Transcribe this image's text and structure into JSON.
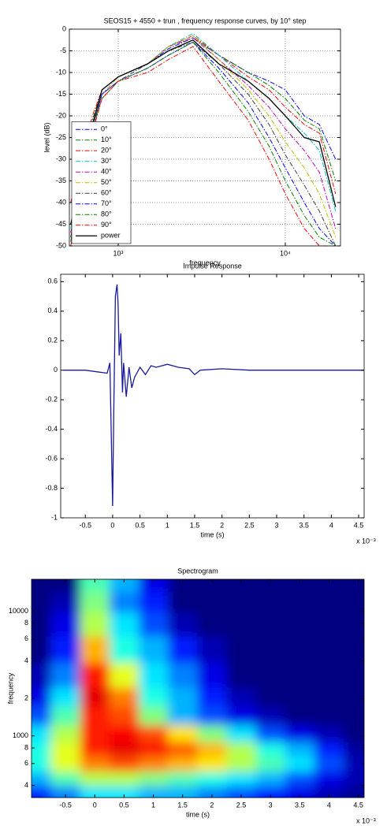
{
  "chart_data": [
    {
      "type": "line",
      "title": "SEOS15 + 4550 + trun , frequency response curves, by 10° step",
      "xlabel": "frequency",
      "ylabel": "level  (dB)",
      "xscale": "log",
      "grid": true,
      "legend": "lower left",
      "xlim": [
        510,
        21400
      ],
      "ylim": [
        -50,
        0
      ],
      "xticks": [
        {
          "value": 1000,
          "label": "10³"
        },
        {
          "value": 10000,
          "label": "10⁴"
        }
      ],
      "yticks": [
        -50,
        -45,
        -40,
        -35,
        -30,
        -25,
        -20,
        -15,
        -10,
        -5,
        0
      ],
      "x": [
        520,
        700,
        800,
        1000,
        1500,
        2000,
        2800,
        4000,
        6000,
        8000,
        10000,
        13000,
        16000,
        20000
      ],
      "series": [
        {
          "name": "0°",
          "color": "#0000ff",
          "line_style": "dash-dot",
          "values": [
            -48,
            -22,
            -15,
            -11,
            -8,
            -4.5,
            -2,
            -6,
            -10,
            -12,
            -14,
            -20,
            -22,
            -30
          ]
        },
        {
          "name": "10°",
          "color": "#008000",
          "line_style": "dash-dot",
          "values": [
            -47,
            -21,
            -14,
            -11,
            -8,
            -4,
            -2,
            -6,
            -10,
            -13,
            -16,
            -21,
            -23,
            -35
          ]
        },
        {
          "name": "20°",
          "color": "#ff0000",
          "line_style": "dash-dot",
          "values": [
            -40,
            -20,
            -14,
            -11,
            -8,
            -4,
            -1.5,
            -6,
            -11,
            -14,
            -18,
            -22,
            -24,
            -38
          ]
        },
        {
          "name": "30°",
          "color": "#00bfbf",
          "line_style": "dash-dot",
          "values": [
            -46,
            -22,
            -14,
            -11,
            -8,
            -4,
            -1,
            -6,
            -12,
            -16,
            -20,
            -24,
            -28,
            -42
          ]
        },
        {
          "name": "40°",
          "color": "#bf00bf",
          "line_style": "dash-dot",
          "values": [
            -47,
            -22,
            -14,
            -11,
            -8,
            -4,
            -2,
            -7,
            -13,
            -18,
            -23,
            -28,
            -33,
            -46
          ]
        },
        {
          "name": "50°",
          "color": "#bfbf00",
          "line_style": "dash-dot",
          "values": [
            -48,
            -22,
            -15,
            -11,
            -8,
            -4,
            -1.5,
            -7,
            -14,
            -20,
            -26,
            -32,
            -38,
            -48
          ]
        },
        {
          "name": "60°",
          "color": "#404040",
          "line_style": "dash-dot",
          "values": [
            -48,
            -23,
            -15,
            -12,
            -8,
            -5,
            -3,
            -8,
            -15,
            -22,
            -29,
            -36,
            -42,
            -50
          ]
        },
        {
          "name": "70°",
          "color": "#0000ff",
          "line_style": "dash-dot",
          "values": [
            -49,
            -23,
            -15,
            -12,
            -9,
            -6,
            -3,
            -9,
            -17,
            -25,
            -32,
            -40,
            -46,
            -50
          ]
        },
        {
          "name": "80°",
          "color": "#008000",
          "line_style": "dash-dot",
          "values": [
            -49,
            -23,
            -16,
            -12,
            -9,
            -6,
            -3,
            -10,
            -19,
            -27,
            -35,
            -43,
            -48,
            -50
          ]
        },
        {
          "name": "90°",
          "color": "#ff0000",
          "line_style": "dash-dot",
          "values": [
            -50,
            -24,
            -16,
            -12,
            -10,
            -7,
            -4,
            -12,
            -21,
            -30,
            -38,
            -46,
            -50,
            -50
          ]
        },
        {
          "name": "power",
          "color": "#000000",
          "line_style": "solid",
          "values": [
            -45,
            -22,
            -14,
            -11,
            -8,
            -5,
            -2.5,
            -8,
            -12,
            -16,
            -20,
            -25,
            -26,
            -41
          ]
        }
      ]
    },
    {
      "type": "line",
      "title": "Impulse Response",
      "xlabel": "time (s)",
      "annotation": "x 10⁻³",
      "color": "#1a1a9c",
      "xlim": [
        -0.95,
        4.6
      ],
      "ylim": [
        -1,
        0.65
      ],
      "xticks": [
        -0.5,
        0,
        0.5,
        1,
        1.5,
        2,
        2.5,
        3,
        3.5,
        4,
        4.5
      ],
      "yticks": [
        -1,
        -0.8,
        -0.6,
        -0.4,
        -0.2,
        0,
        0.2,
        0.4,
        0.6
      ],
      "x": [
        -0.9,
        -0.5,
        -0.1,
        -0.05,
        0,
        0.02,
        0.05,
        0.08,
        0.1,
        0.12,
        0.15,
        0.18,
        0.2,
        0.25,
        0.3,
        0.35,
        0.4,
        0.5,
        0.6,
        0.7,
        0.8,
        1.0,
        1.2,
        1.4,
        1.5,
        1.6,
        2.0,
        2.5,
        3,
        3.5,
        4,
        4.6
      ],
      "values": [
        0,
        0,
        -0.02,
        0.05,
        -0.92,
        -0.3,
        0.5,
        0.58,
        0.45,
        0.1,
        0.25,
        -0.15,
        0.05,
        -0.18,
        0.02,
        -0.12,
        -0.05,
        0.02,
        -0.03,
        0.03,
        0.02,
        0.04,
        0.02,
        0.01,
        -0.03,
        0,
        0.01,
        0,
        0,
        0,
        0,
        0
      ]
    },
    {
      "type": "heatmap",
      "title": "Spectrogram",
      "xlabel": "time (s)",
      "ylabel": "frequency",
      "annotation": "x 10⁻³",
      "yscale": "log",
      "xlim": [
        -1.08,
        4.6
      ],
      "ylim": [
        320,
        18000
      ],
      "xticks": [
        -0.5,
        0,
        0.5,
        1,
        1.5,
        2,
        2.5,
        3,
        3.5,
        4,
        4.5
      ],
      "yticks": [
        {
          "value": 400,
          "label": "4"
        },
        {
          "value": 600,
          "label": "6"
        },
        {
          "value": 800,
          "label": "8"
        },
        1000,
        {
          "value": 2000,
          "label": "2"
        },
        {
          "value": 4000,
          "label": "4"
        },
        {
          "value": 6000,
          "label": "6"
        },
        {
          "value": 8000,
          "label": "8"
        },
        10000
      ],
      "x": [
        -1,
        -0.5,
        0,
        0.5,
        1,
        1.5,
        2,
        2.5,
        3,
        3.5,
        4,
        4.5
      ],
      "y": [
        350,
        450,
        600,
        800,
        1000,
        1500,
        2000,
        3000,
        5000,
        8000,
        12000,
        17000
      ],
      "z": [
        [
          0.15,
          0.25,
          0.35,
          0.35,
          0.3,
          0.3,
          0.25,
          0.2,
          0.15,
          0.1,
          0.05,
          0.02
        ],
        [
          0.3,
          0.45,
          0.55,
          0.55,
          0.5,
          0.45,
          0.4,
          0.35,
          0.3,
          0.2,
          0.1,
          0.05
        ],
        [
          0.4,
          0.6,
          0.75,
          0.8,
          0.75,
          0.7,
          0.65,
          0.55,
          0.45,
          0.35,
          0.2,
          0.05
        ],
        [
          0.4,
          0.6,
          0.85,
          0.9,
          0.88,
          0.8,
          0.7,
          0.55,
          0.4,
          0.3,
          0.15,
          0.03
        ],
        [
          0.35,
          0.55,
          0.85,
          0.88,
          0.8,
          0.65,
          0.5,
          0.35,
          0.2,
          0.1,
          0.05,
          0
        ],
        [
          0.2,
          0.45,
          0.85,
          0.8,
          0.5,
          0.3,
          0.2,
          0.1,
          0.05,
          0,
          0,
          0
        ],
        [
          0.1,
          0.35,
          0.9,
          0.75,
          0.4,
          0.3,
          0.15,
          0.05,
          0,
          0,
          0,
          0
        ],
        [
          0.05,
          0.25,
          0.85,
          0.6,
          0.35,
          0.25,
          0.1,
          0,
          0,
          0,
          0,
          0
        ],
        [
          0,
          0.15,
          0.7,
          0.4,
          0.3,
          0.15,
          0.05,
          0,
          0,
          0,
          0,
          0
        ],
        [
          0,
          0.1,
          0.55,
          0.35,
          0.2,
          0.05,
          0,
          0,
          0,
          0,
          0,
          0
        ],
        [
          0,
          0.05,
          0.5,
          0.25,
          0.15,
          0,
          0,
          0,
          0,
          0,
          0,
          0
        ],
        [
          0,
          0,
          0.45,
          0.3,
          0.1,
          0,
          0,
          0,
          0,
          0,
          0,
          0
        ]
      ]
    }
  ]
}
